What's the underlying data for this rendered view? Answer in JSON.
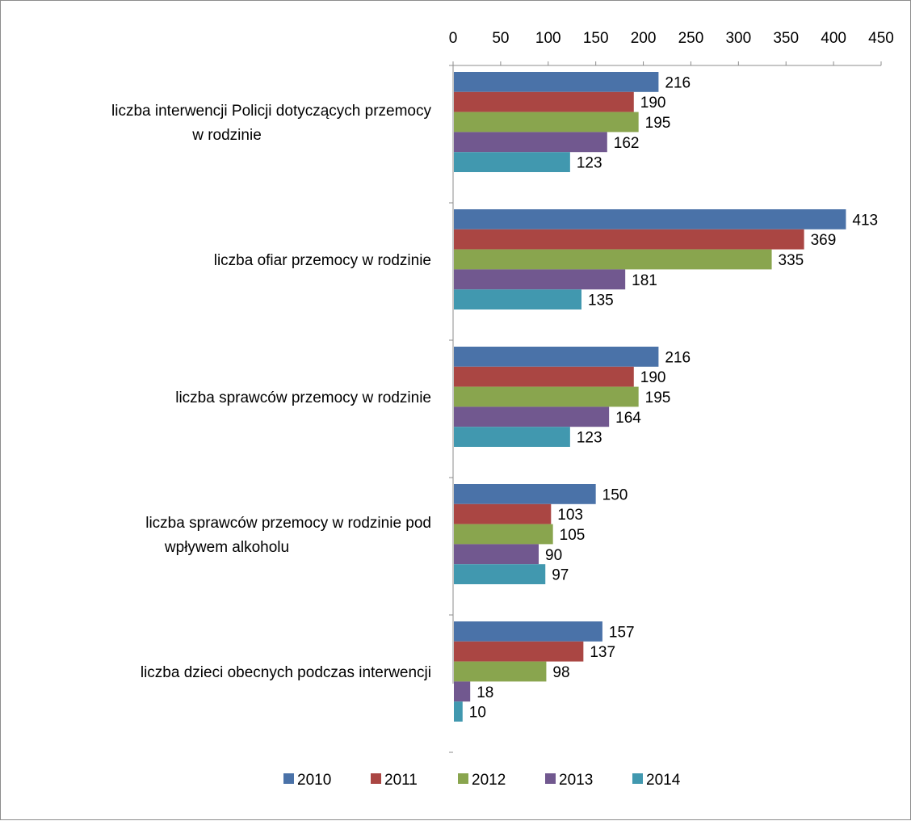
{
  "chart_data": {
    "type": "bar",
    "orientation": "horizontal",
    "xlim": [
      0,
      450
    ],
    "x_ticks": [
      0,
      50,
      100,
      150,
      200,
      250,
      300,
      350,
      400,
      450
    ],
    "x_axis_position": "top",
    "grid": false,
    "legend_position": "bottom",
    "categories": [
      [
        "liczba interwencji Policji dotyczących przemocy",
        "w rodzinie"
      ],
      [
        "liczba ofiar przemocy w rodzinie"
      ],
      [
        "liczba sprawców przemocy w rodzinie"
      ],
      [
        "liczba sprawców przemocy w rodzinie pod",
        "wpływem alkoholu"
      ],
      [
        "liczba dzieci obecnych podczas interwencji"
      ]
    ],
    "series": [
      {
        "name": "2010",
        "color": "#4a72a8",
        "values": [
          216,
          413,
          216,
          150,
          157
        ]
      },
      {
        "name": "2011",
        "color": "#aa4643",
        "values": [
          190,
          369,
          190,
          103,
          137
        ]
      },
      {
        "name": "2012",
        "color": "#89a54e",
        "values": [
          195,
          335,
          195,
          105,
          98
        ]
      },
      {
        "name": "2013",
        "color": "#71588f",
        "values": [
          162,
          181,
          164,
          90,
          18
        ]
      },
      {
        "name": "2014",
        "color": "#4198af",
        "values": [
          123,
          135,
          123,
          97,
          10
        ]
      }
    ]
  }
}
